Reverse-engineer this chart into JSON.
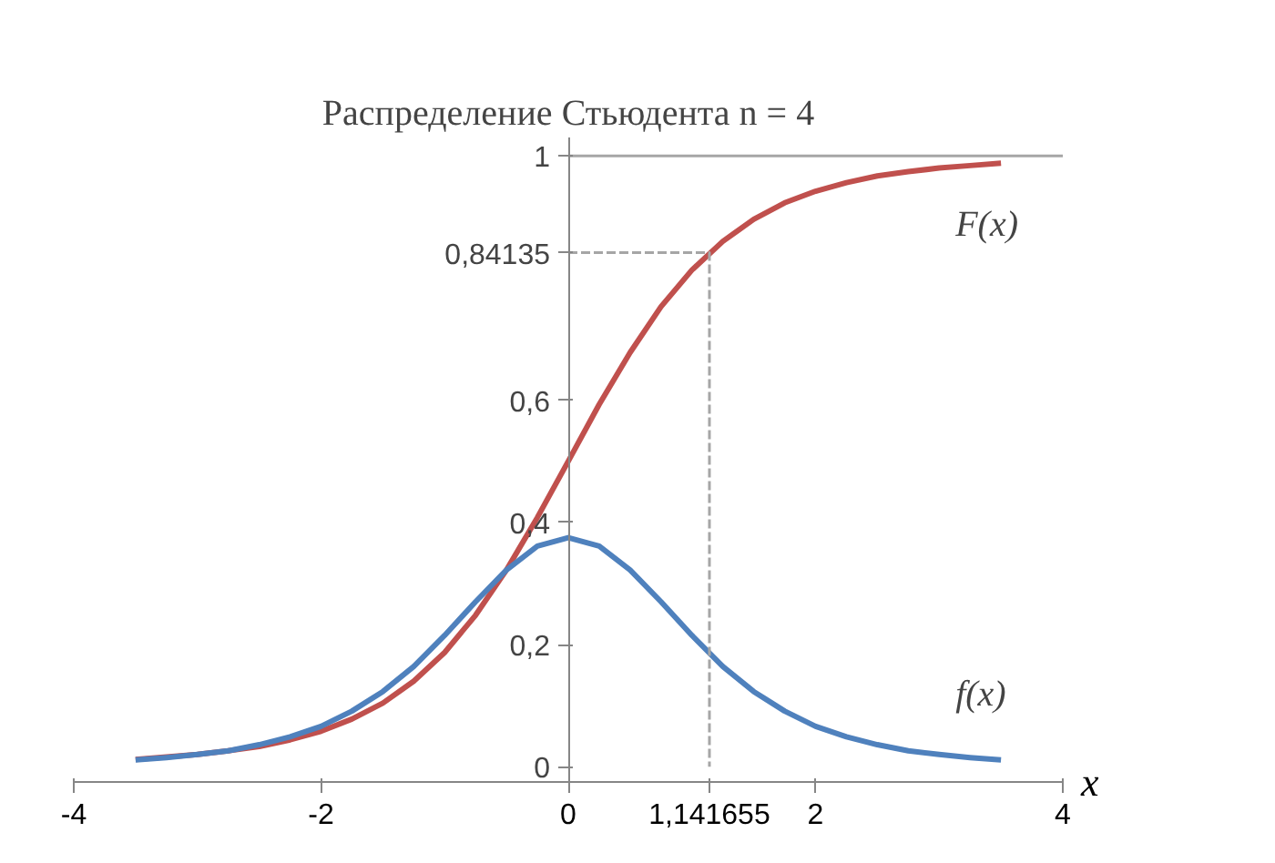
{
  "chart_data": {
    "type": "line",
    "title": "Распределение Стьюдента n = 4",
    "xlabel": "x",
    "x": [
      -3.5,
      -3.25,
      -3,
      -2.75,
      -2.5,
      -2.25,
      -2,
      -1.75,
      -1.5,
      -1.25,
      -1,
      -0.75,
      -0.5,
      -0.25,
      0,
      0.25,
      0.5,
      0.75,
      1,
      1.25,
      1.5,
      1.75,
      2,
      2.25,
      2.5,
      2.75,
      3,
      3.25,
      3.5
    ],
    "xlim": [
      -4,
      4
    ],
    "ylim": [
      -0.025,
      1.03
    ],
    "xticks": [
      -4,
      -2,
      0,
      {
        "value": 1.141655,
        "label": "1,141655"
      },
      2,
      4
    ],
    "yticks": [
      0,
      {
        "value": 0.2,
        "label": "0,2"
      },
      {
        "value": 0.4,
        "label": "0,4"
      },
      {
        "value": 0.6,
        "label": "0,6"
      },
      {
        "value": 0.84135,
        "label": "0,84135"
      },
      1
    ],
    "grid": false,
    "marker": "none",
    "series": [
      {
        "name": "F(x)",
        "color": "#c0504d",
        "values": [
          0.012,
          0.016,
          0.02,
          0.026,
          0.033,
          0.044,
          0.058,
          0.078,
          0.104,
          0.14,
          0.187,
          0.248,
          0.322,
          0.408,
          0.5,
          0.593,
          0.678,
          0.753,
          0.813,
          0.86,
          0.896,
          0.923,
          0.942,
          0.956,
          0.967,
          0.974,
          0.98,
          0.984,
          0.988
        ]
      },
      {
        "name": "f(x)",
        "color": "#4f81bd",
        "values": [
          0.011,
          0.015,
          0.02,
          0.026,
          0.036,
          0.049,
          0.066,
          0.091,
          0.123,
          0.164,
          0.215,
          0.27,
          0.322,
          0.361,
          0.375,
          0.361,
          0.322,
          0.27,
          0.215,
          0.164,
          0.123,
          0.091,
          0.066,
          0.049,
          0.036,
          0.026,
          0.02,
          0.015,
          0.011
        ]
      },
      {
        "color": "#a6a6a6",
        "line_style": "dashed",
        "x": [
          0,
          1.141655,
          1.141655
        ],
        "values": [
          0.84135,
          0.84135,
          0
        ]
      },
      {
        "color": "#a6a6a6",
        "x": [
          0,
          4
        ],
        "values": [
          1,
          1
        ]
      }
    ]
  }
}
